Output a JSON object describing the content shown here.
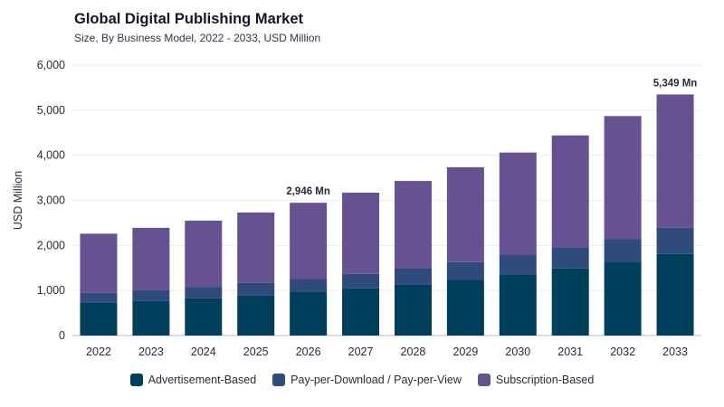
{
  "header": {
    "title": "Global Digital Publishing Market",
    "subtitle": "Size, By Business Model, 2022 - 2033, USD Million"
  },
  "chart_data": {
    "type": "bar",
    "stacked": true,
    "categories": [
      "2022",
      "2023",
      "2024",
      "2025",
      "2026",
      "2027",
      "2028",
      "2029",
      "2030",
      "2031",
      "2032",
      "2033"
    ],
    "series": [
      {
        "name": "Advertisement-Based",
        "color": "#003f5c",
        "values": [
          730,
          770,
          825,
          890,
          975,
          1050,
          1125,
          1235,
          1345,
          1490,
          1625,
          1810
        ]
      },
      {
        "name": "Pay-per-Download / Pay-per-View",
        "color": "#2f4b7c",
        "values": [
          220,
          235,
          250,
          280,
          280,
          320,
          360,
          395,
          440,
          465,
          520,
          580
        ]
      },
      {
        "name": "Subscription-Based",
        "color": "#665191",
        "values": [
          1310,
          1385,
          1475,
          1560,
          1691,
          1800,
          1945,
          2105,
          2275,
          2485,
          2725,
          2959
        ]
      }
    ],
    "ylabel": "USD Million",
    "xlabel": "",
    "ylim": [
      0,
      6000
    ],
    "yticks": [
      "0",
      "1,000",
      "2,000",
      "3,000",
      "4,000",
      "5,000",
      "6,000"
    ],
    "grid": true,
    "legend_position": "bottom",
    "annotations": [
      {
        "category": "2026",
        "text": "2,946 Mn"
      },
      {
        "category": "2033",
        "text": "5,349 Mn"
      }
    ]
  }
}
